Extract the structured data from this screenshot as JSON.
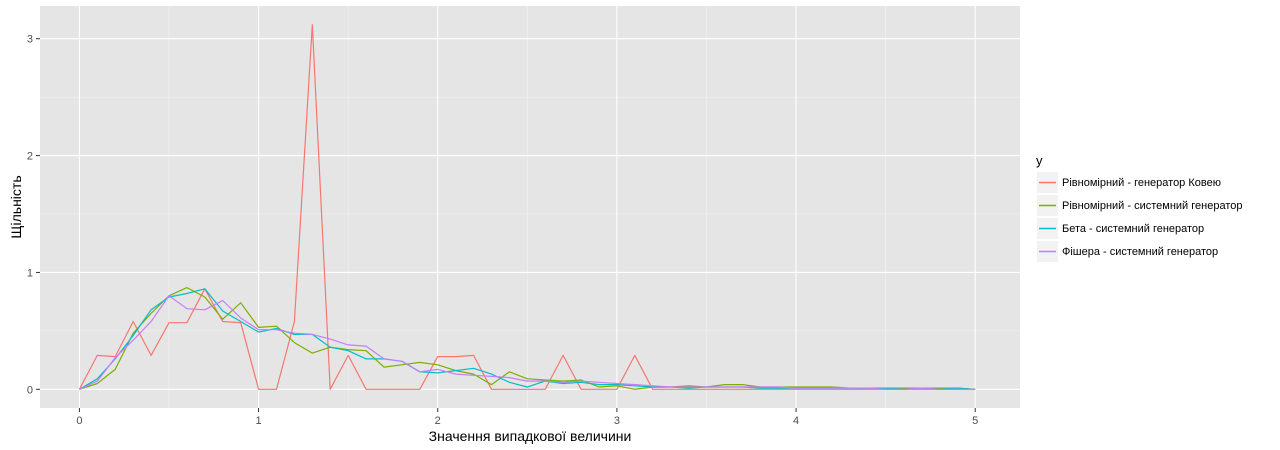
{
  "chart_data": {
    "type": "line",
    "title": "",
    "xlabel": "Значення випадкової величини",
    "ylabel": "Щільність",
    "xlim": [
      -0.22,
      5.25
    ],
    "ylim": [
      -0.16,
      3.28
    ],
    "x_ticks": [
      0,
      1,
      2,
      3,
      4,
      5
    ],
    "x_tick_labels": [
      "0",
      "1",
      "2",
      "3",
      "4",
      "5"
    ],
    "y_ticks": [
      0,
      1,
      2,
      3
    ],
    "y_tick_labels": [
      "0",
      "1",
      "2",
      "3"
    ],
    "grid": true,
    "background": "#e5e5e5",
    "legend": {
      "title": "y",
      "position": "right"
    },
    "series": [
      {
        "name": "Рівномірний - генератор Ковею",
        "color": "#f8766d",
        "x": [
          0,
          0.1,
          0.2,
          0.3,
          0.4,
          0.5,
          0.6,
          0.7,
          0.8,
          0.9,
          1.0,
          1.1,
          1.2,
          1.3,
          1.4,
          1.5,
          1.6,
          1.7,
          1.8,
          1.9,
          2.0,
          2.1,
          2.2,
          2.3,
          2.4,
          2.5,
          2.6,
          2.7,
          2.8,
          2.9,
          3.0,
          3.1,
          3.2,
          3.3,
          3.4,
          3.5,
          3.6,
          3.7,
          3.8,
          3.9,
          4.0,
          4.1,
          4.2,
          4.3,
          4.4,
          4.5,
          4.6,
          4.7,
          4.8,
          4.9,
          5.0
        ],
        "y": [
          0,
          0.29,
          0.28,
          0.58,
          0.29,
          0.57,
          0.57,
          0.86,
          0.58,
          0.57,
          0,
          0,
          0.58,
          3.12,
          0,
          0.29,
          0,
          0,
          0,
          0,
          0.28,
          0.28,
          0.29,
          0,
          0,
          0,
          0,
          0.29,
          0,
          0,
          0,
          0.29,
          0,
          0,
          0,
          0,
          0,
          0,
          0,
          0,
          0,
          0,
          0,
          0,
          0,
          0,
          0,
          0,
          0,
          0,
          0
        ]
      },
      {
        "name": "Рівномірний - системний генератор",
        "color": "#7cae00",
        "x": [
          0,
          0.1,
          0.2,
          0.3,
          0.4,
          0.5,
          0.6,
          0.7,
          0.8,
          0.9,
          1.0,
          1.1,
          1.2,
          1.3,
          1.4,
          1.5,
          1.6,
          1.7,
          1.8,
          1.9,
          2.0,
          2.1,
          2.2,
          2.3,
          2.4,
          2.5,
          2.6,
          2.7,
          2.8,
          2.9,
          3.0,
          3.1,
          3.2,
          3.3,
          3.4,
          3.5,
          3.6,
          3.7,
          3.8,
          3.9,
          4.0,
          4.1,
          4.2,
          4.3,
          4.4,
          4.5,
          4.6,
          4.7,
          4.8,
          4.9,
          5.0
        ],
        "y": [
          0,
          0.05,
          0.17,
          0.48,
          0.65,
          0.8,
          0.87,
          0.79,
          0.6,
          0.74,
          0.53,
          0.54,
          0.4,
          0.31,
          0.36,
          0.34,
          0.33,
          0.19,
          0.21,
          0.23,
          0.21,
          0.16,
          0.13,
          0.04,
          0.15,
          0.09,
          0.08,
          0.07,
          0.08,
          0.02,
          0.03,
          0,
          0.02,
          0.02,
          0.03,
          0.02,
          0.04,
          0.04,
          0.02,
          0.02,
          0.02,
          0.02,
          0.02,
          0.01,
          0.01,
          0.01,
          0.01,
          0.01,
          0.01,
          0.01,
          0
        ]
      },
      {
        "name": "Бета - системний генератор",
        "color": "#00bfc4",
        "x": [
          0,
          0.1,
          0.2,
          0.3,
          0.4,
          0.5,
          0.6,
          0.7,
          0.8,
          0.9,
          1.0,
          1.1,
          1.2,
          1.3,
          1.4,
          1.5,
          1.6,
          1.7,
          1.8,
          1.9,
          2.0,
          2.1,
          2.2,
          2.3,
          2.4,
          2.5,
          2.6,
          2.7,
          2.8,
          2.9,
          3.0,
          3.1,
          3.2,
          3.3,
          3.4,
          3.5,
          3.6,
          3.7,
          3.8,
          3.9,
          4.0,
          4.1,
          4.2,
          4.3,
          4.4,
          4.5,
          4.6,
          4.7,
          4.8,
          4.9,
          5.0
        ],
        "y": [
          0,
          0.09,
          0.26,
          0.46,
          0.68,
          0.79,
          0.82,
          0.86,
          0.67,
          0.58,
          0.49,
          0.52,
          0.47,
          0.47,
          0.36,
          0.33,
          0.26,
          0.26,
          0.24,
          0.15,
          0.14,
          0.16,
          0.18,
          0.13,
          0.06,
          0.02,
          0.07,
          0.05,
          0.06,
          0.04,
          0.04,
          0.03,
          0.02,
          0.02,
          0.01,
          0.02,
          0.02,
          0.02,
          0.01,
          0.01,
          0.01,
          0.01,
          0.01,
          0.01,
          0.01,
          0.01,
          0,
          0.01,
          0,
          0.01,
          0
        ]
      },
      {
        "name": "Фішера - системний генератор",
        "color": "#c77cff",
        "x": [
          0,
          0.1,
          0.2,
          0.3,
          0.4,
          0.5,
          0.6,
          0.7,
          0.8,
          0.9,
          1.0,
          1.1,
          1.2,
          1.3,
          1.4,
          1.5,
          1.6,
          1.7,
          1.8,
          1.9,
          2.0,
          2.1,
          2.2,
          2.3,
          2.4,
          2.5,
          2.6,
          2.7,
          2.8,
          2.9,
          3.0,
          3.1,
          3.2,
          3.3,
          3.4,
          3.5,
          3.6,
          3.7,
          3.8,
          3.9,
          4.0,
          4.1,
          4.2,
          4.3,
          4.4,
          4.5,
          4.6,
          4.7,
          4.8,
          4.9,
          5.0
        ],
        "y": [
          0,
          0.07,
          0.27,
          0.42,
          0.58,
          0.8,
          0.69,
          0.68,
          0.76,
          0.61,
          0.51,
          0.51,
          0.48,
          0.47,
          0.43,
          0.38,
          0.37,
          0.26,
          0.24,
          0.15,
          0.17,
          0.13,
          0.12,
          0.11,
          0.1,
          0.07,
          0.07,
          0.06,
          0.07,
          0.06,
          0.05,
          0.04,
          0.03,
          0.02,
          0.02,
          0.02,
          0.02,
          0.02,
          0.02,
          0.02,
          0.01,
          0.01,
          0.01,
          0.01,
          0.01,
          0,
          0,
          0.01,
          0,
          0,
          0
        ]
      }
    ]
  }
}
